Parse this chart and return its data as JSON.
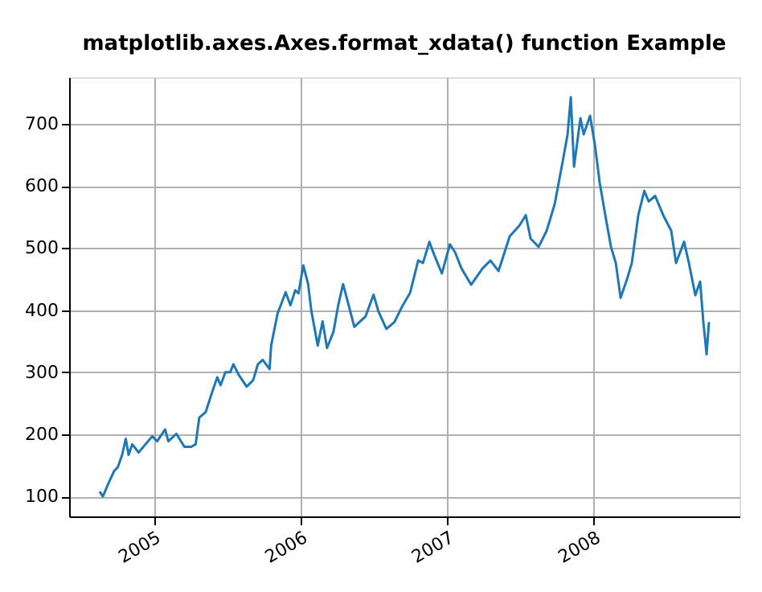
{
  "chart_data": {
    "type": "line",
    "title": "matplotlib.axes.Axes.format_xdata() function Example",
    "x": [
      "2004-08-19",
      "2004-08-27",
      "2004-09-09",
      "2004-09-24",
      "2004-10-03",
      "2004-10-14",
      "2004-10-23",
      "2004-10-30",
      "2004-11-08",
      "2004-11-24",
      "2004-12-28",
      "2005-01-09",
      "2005-01-29",
      "2005-02-06",
      "2005-02-26",
      "2005-03-18",
      "2005-04-04",
      "2005-04-15",
      "2005-04-24",
      "2005-05-10",
      "2005-05-27",
      "2005-06-08",
      "2005-06-16",
      "2005-06-28",
      "2005-07-10",
      "2005-07-18",
      "2005-07-31",
      "2005-08-20",
      "2005-09-05",
      "2005-09-17",
      "2005-09-29",
      "2005-10-16",
      "2005-10-20",
      "2005-11-05",
      "2005-11-13",
      "2005-11-25",
      "2005-12-07",
      "2005-12-19",
      "2005-12-27",
      "2006-01-08",
      "2006-01-20",
      "2006-01-28",
      "2006-02-13",
      "2006-02-25",
      "2006-03-08",
      "2006-03-24",
      "2006-04-05",
      "2006-04-17",
      "2006-05-03",
      "2006-05-15",
      "2006-06-12",
      "2006-07-02",
      "2006-07-14",
      "2006-08-03",
      "2006-08-23",
      "2006-09-12",
      "2006-10-01",
      "2006-10-21",
      "2006-11-02",
      "2006-11-18",
      "2006-11-30",
      "2006-12-19",
      "2007-01-08",
      "2007-01-21",
      "2007-02-06",
      "2007-03-02",
      "2007-03-30",
      "2007-04-19",
      "2007-05-09",
      "2007-06-06",
      "2007-06-30",
      "2007-07-16",
      "2007-07-28",
      "2007-08-17",
      "2007-09-06",
      "2007-09-26",
      "2007-10-16",
      "2007-10-28",
      "2007-11-05",
      "2007-11-13",
      "2007-11-29",
      "2007-12-07",
      "2007-12-23",
      "2008-01-04",
      "2008-01-16",
      "2008-02-01",
      "2008-02-13",
      "2008-02-25",
      "2008-03-08",
      "2008-03-24",
      "2008-04-05",
      "2008-04-21",
      "2008-05-06",
      "2008-05-17",
      "2008-06-02",
      "2008-06-22",
      "2008-07-12",
      "2008-07-24",
      "2008-08-13",
      "2008-08-25",
      "2008-09-10",
      "2008-09-22",
      "2008-09-30",
      "2008-10-08",
      "2008-10-14"
    ],
    "series": [
      {
        "color": "#1f77b4",
        "values": [
          108,
          100,
          120,
          141,
          147,
          167,
          193,
          167,
          184,
          171,
          197,
          189,
          208,
          189,
          201,
          180,
          180,
          184,
          227,
          236,
          270,
          292,
          279,
          300,
          300,
          313,
          296,
          277,
          287,
          313,
          320,
          305,
          343,
          395,
          408,
          429,
          408,
          432,
          427,
          472,
          442,
          399,
          343,
          382,
          339,
          365,
          408,
          442,
          403,
          373,
          390,
          425,
          398,
          370,
          381,
          407,
          428,
          480,
          476,
          510,
          489,
          459,
          506,
          493,
          467,
          441,
          467,
          480,
          463,
          519,
          536,
          553,
          515,
          502,
          528,
          571,
          640,
          683,
          743,
          631,
          709,
          683,
          713,
          666,
          605,
          545,
          502,
          476,
          420,
          450,
          476,
          553,
          592,
          575,
          584,
          553,
          528,
          476,
          510,
          476,
          424,
          446,
          381,
          329,
          381
        ]
      }
    ],
    "xlim": [
      "2004-06-04",
      "2008-12-29"
    ],
    "xticks": [
      {
        "value": "2005-01-01",
        "label": "2005"
      },
      {
        "value": "2006-01-01",
        "label": "2006"
      },
      {
        "value": "2007-01-01",
        "label": "2007"
      },
      {
        "value": "2008-01-01",
        "label": "2008"
      }
    ],
    "ylim": [
      68,
      775
    ],
    "yticks": [
      100,
      200,
      300,
      400,
      500,
      600,
      700
    ],
    "grid": true,
    "legend": false,
    "marker": "none",
    "line_style": "solid"
  }
}
